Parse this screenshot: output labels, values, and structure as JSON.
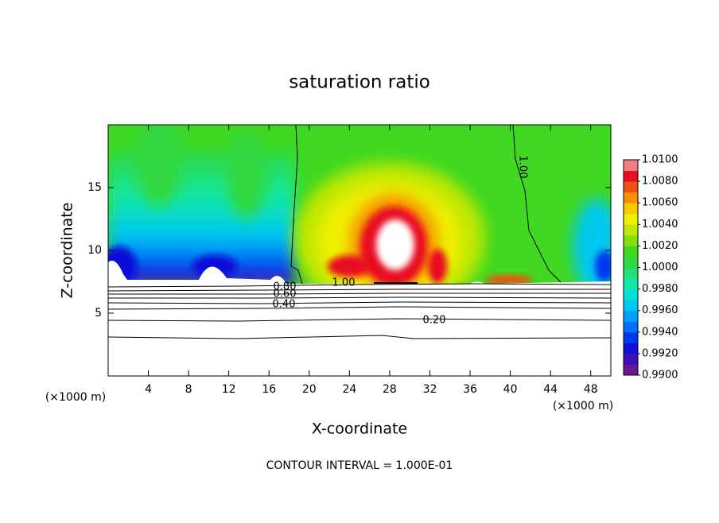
{
  "chart_data": {
    "type": "contour",
    "title": "saturation ratio",
    "x_label": "X-coordinate",
    "y_label": "Z-coordinate",
    "x_unit_label": "(×1000 m)",
    "footnote": "CONTOUR INTERVAL = 1.000E-01",
    "xlim": [
      0,
      50
    ],
    "xticks": [
      4,
      8,
      12,
      16,
      20,
      24,
      28,
      32,
      36,
      40,
      44,
      48
    ],
    "ylim": [
      0,
      20
    ],
    "yticks": [
      5,
      10,
      15
    ],
    "contour_labels": [
      "1.00",
      "1.00",
      "0.80",
      "0.60",
      "0.40",
      "0.20"
    ],
    "colorbar": {
      "ticks": [
        {
          "value": 0.99,
          "label": "0.9900"
        },
        {
          "value": 0.992,
          "label": "0.9920"
        },
        {
          "value": 0.994,
          "label": "0.9940"
        },
        {
          "value": 0.996,
          "label": "0.9960"
        },
        {
          "value": 0.998,
          "label": "0.9980"
        },
        {
          "value": 1.0,
          "label": "1.0000"
        },
        {
          "value": 1.002,
          "label": "1.0020"
        },
        {
          "value": 1.004,
          "label": "1.0040"
        },
        {
          "value": 1.006,
          "label": "1.0060"
        },
        {
          "value": 1.008,
          "label": "1.0080"
        },
        {
          "value": 1.01,
          "label": "1.0100"
        }
      ],
      "colors": [
        "#6a1890",
        "#3a10b8",
        "#1010d8",
        "#0038f0",
        "#0070f8",
        "#00a0f8",
        "#00c8f0",
        "#00e0d8",
        "#10e8a8",
        "#20e078",
        "#30d840",
        "#40d820",
        "#80e010",
        "#c0e800",
        "#f0f000",
        "#f8c800",
        "#f89000",
        "#f05010",
        "#e81020",
        "#f08080"
      ]
    }
  }
}
